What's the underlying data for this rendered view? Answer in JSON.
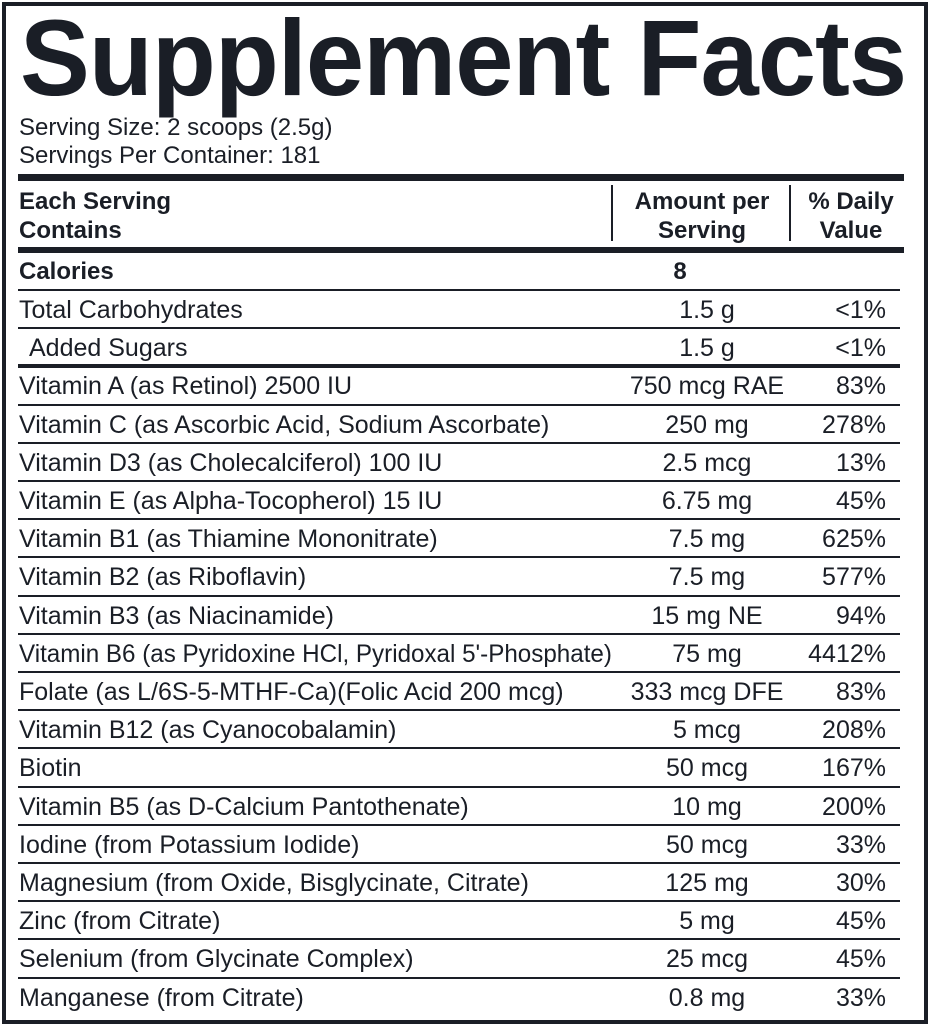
{
  "title": "Supplement Facts",
  "serving": [
    "Serving Size: 2 scoops (2.5g)",
    "Servings Per Container: 181"
  ],
  "table": {
    "header": [
      [
        "Each Serving",
        "Contains"
      ],
      [
        "Amount per",
        "Serving"
      ],
      [
        "% Daily",
        "Value"
      ]
    ],
    "calories": [
      "Calories",
      "8"
    ],
    "rows": [
      [
        "Total Carbohydrates",
        "1.5 g",
        "<1%"
      ],
      [
        "Added Sugars",
        "1.5 g",
        "<1%"
      ],
      [
        "Vitamin A (as Retinol) 2500 IU",
        "750 mcg RAE",
        "83%"
      ],
      [
        "Vitamin C (as Ascorbic Acid, Sodium Ascorbate)",
        "250 mg",
        "278%"
      ],
      [
        "Vitamin D3 (as Cholecalciferol) 100 IU",
        "2.5 mcg",
        "13%"
      ],
      [
        "Vitamin E (as Alpha-Tocopherol) 15 IU",
        "6.75 mg",
        "45%"
      ],
      [
        "Vitamin B1 (as Thiamine Mononitrate)",
        "7.5 mg",
        "625%"
      ],
      [
        "Vitamin B2 (as Riboflavin)",
        "7.5 mg",
        "577%"
      ],
      [
        "Vitamin B3 (as Niacinamide)",
        "15 mg NE",
        "94%"
      ],
      [
        "Vitamin B6 (as Pyridoxine HCl, Pyridoxal 5'-Phosphate)",
        "75 mg",
        "4412%"
      ],
      [
        "Folate (as L/6S-5-MTHF-Ca)(Folic Acid 200 mcg)",
        "333 mcg DFE",
        "83%"
      ],
      [
        "Vitamin B12 (as Cyanocobalamin)",
        "5 mcg",
        "208%"
      ],
      [
        "Biotin",
        "50 mcg",
        "167%"
      ],
      [
        "Vitamin B5 (as D-Calcium Pantothenate)",
        "10 mg",
        "200%"
      ],
      [
        "Iodine (from Potassium Iodide)",
        "50 mcg",
        "33%"
      ],
      [
        "Magnesium (from Oxide, Bisglycinate, Citrate)",
        "125 mg",
        "30%"
      ],
      [
        "Zinc (from Citrate)",
        "5 mg",
        "45%"
      ],
      [
        "Selenium (from Glycinate Complex)",
        "25 mcg",
        "45%"
      ],
      [
        "Manganese (from Citrate)",
        "0.8 mg",
        "33%"
      ]
    ]
  }
}
